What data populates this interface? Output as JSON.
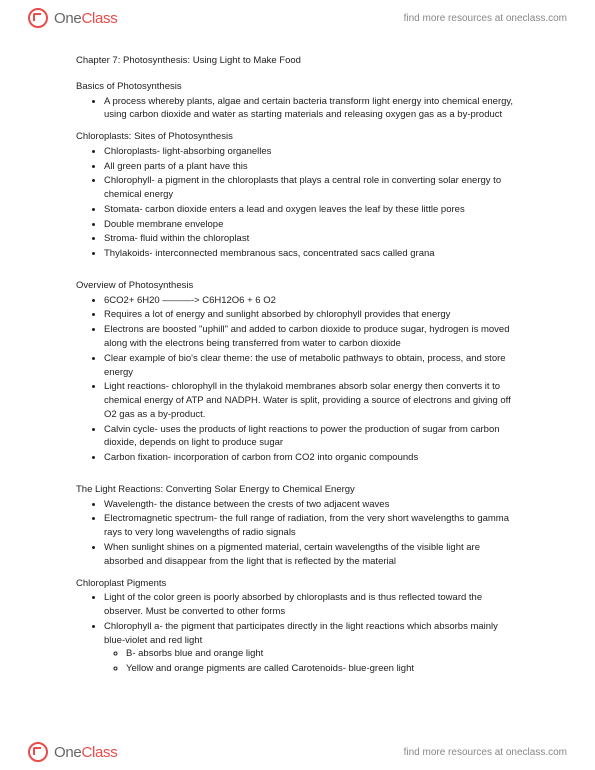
{
  "brand": {
    "part1": "One",
    "part2": "Class"
  },
  "tagline": "find more resources at oneclass.com",
  "title": "Chapter 7: Photosynthesis: Using Light to Make Food",
  "sections": [
    {
      "heading": "Basics of Photosynthesis",
      "bullets": [
        {
          "t": "A process whereby plants, algae and certain bacteria transform light energy into chemical energy, using carbon dioxide and water as starting materials and releasing oxygen gas as a by-product"
        }
      ]
    },
    {
      "heading": "Chloroplasts: Sites of Photosynthesis",
      "bullets": [
        {
          "t": "Chloroplasts- light-absorbing organelles"
        },
        {
          "t": "All green parts of a plant have this"
        },
        {
          "t": "Chlorophyll- a pigment in the chloroplasts that plays a central role in converting solar energy to chemical energy"
        },
        {
          "t": "Stomata- carbon dioxide enters a lead and oxygen leaves the leaf by these little pores"
        },
        {
          "t": "Double membrane envelope"
        },
        {
          "t": "Stroma- fluid within the chloroplast"
        },
        {
          "t": "Thylakoids- interconnected membranous sacs, concentrated sacs called grana"
        }
      ]
    },
    {
      "heading": "Overview of Photosynthesis",
      "gap_before": true,
      "bullets": [
        {
          "t": "6CO2+ 6H20 ———-> C6H12O6 + 6 O2"
        },
        {
          "t": "Requires a lot of energy and sunlight absorbed by chlorophyll provides that energy"
        },
        {
          "t": "Electrons are boosted \"uphill\" and added to carbon dioxide to produce sugar, hydrogen is moved along with the electrons being transferred from water to carbon dioxide"
        },
        {
          "t": "Clear example of bio's clear theme: the use of metabolic pathways to obtain, process, and store energy"
        },
        {
          "t": "Light reactions- chlorophyll in the thylakoid membranes absorb solar energy then converts it to chemical energy of ATP and NADPH. Water is split, providing a source of electrons and giving off O2 gas as a by-product."
        },
        {
          "t": "Calvin cycle- uses the products of light reactions to power the production of sugar from carbon dioxide, depends on light to produce sugar"
        },
        {
          "t": "Carbon fixation- incorporation of carbon from CO2 into organic compounds"
        }
      ]
    },
    {
      "heading": "The Light Reactions: Converting Solar Energy to Chemical Energy",
      "gap_before": true,
      "bullets": [
        {
          "t": "Wavelength- the distance between the crests of two adjacent waves"
        },
        {
          "t": "Electromagnetic spectrum- the full range of radiation, from the very short wavelengths to gamma rays to very long wavelengths of radio signals"
        },
        {
          "t": "When sunlight shines on a pigmented material, certain wavelengths of the visible light are absorbed and disappear from the light that is reflected by the material"
        }
      ]
    },
    {
      "heading": "Chloroplast Pigments",
      "bullets": [
        {
          "t": "Light of the color green is poorly absorbed by chloroplasts and is thus reflected toward the observer. Must be converted to other forms"
        },
        {
          "t": "Chlorophyll a- the pigment that participates directly in the light reactions which absorbs mainly blue-violet and red light",
          "sub": [
            {
              "t": "B- absorbs blue and orange light"
            },
            {
              "t": "Yellow and orange pigments are called Carotenoids- blue-green light"
            }
          ]
        }
      ]
    }
  ]
}
